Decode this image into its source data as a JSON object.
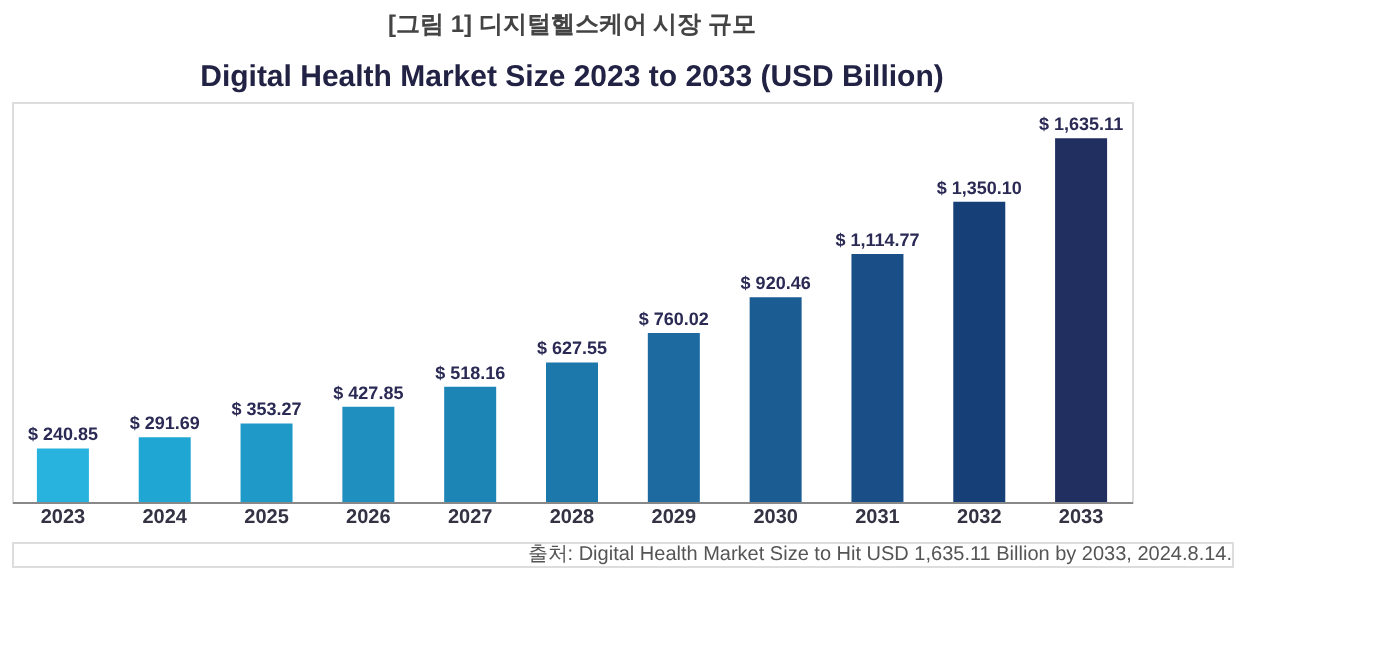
{
  "chart_data": {
    "type": "bar",
    "title": "[그림 1] 디지털헬스케어 시장 규모",
    "subtitle": "Digital Health Market Size 2023 to 2033 (USD Billion)",
    "categories": [
      "2023",
      "2024",
      "2025",
      "2026",
      "2027",
      "2028",
      "2029",
      "2030",
      "2031",
      "2032",
      "2033"
    ],
    "values": [
      240.85,
      291.69,
      353.27,
      427.85,
      518.16,
      627.55,
      760.02,
      920.46,
      1114.77,
      1350.1,
      1635.11
    ],
    "value_labels": [
      "$ 240.85",
      "$ 291.69",
      "$ 353.27",
      "$ 427.85",
      "$ 518.16",
      "$ 627.55",
      "$ 760.02",
      "$ 920.46",
      "$ 1,114.77",
      "$ 1,350.10",
      "$ 1,635.11"
    ],
    "colors": [
      "#27b3dd",
      "#20a6d3",
      "#1f9ac8",
      "#1f8fbf",
      "#1d84b6",
      "#1c78ab",
      "#1c6aa0",
      "#1b5c93",
      "#194e86",
      "#173f77",
      "#202f5f"
    ],
    "annotations": [
      "출처: Digital Health Market Size to Hit USD 1,635.11 Billion by 2033, 2024.8.14."
    ]
  }
}
